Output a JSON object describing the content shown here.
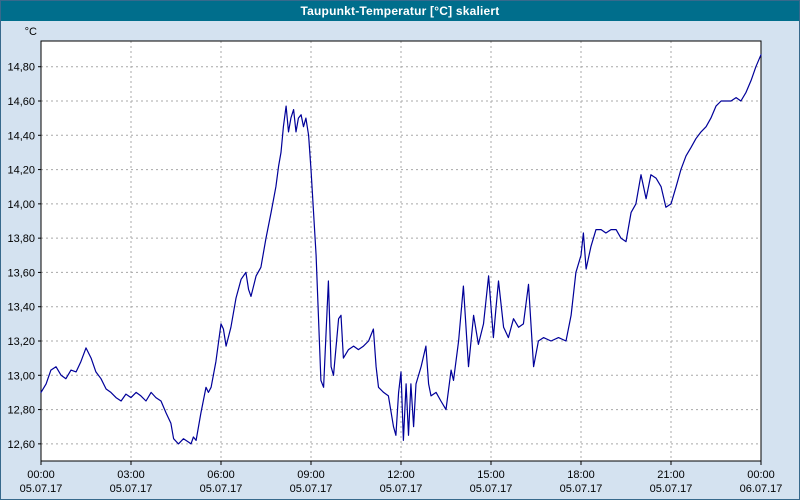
{
  "window": {
    "title": "Taupunkt-Temperatur [°C] skaliert"
  },
  "chart_data": {
    "type": "line",
    "title": "Taupunkt-Temperatur [°C] skaliert",
    "unit_label": "°C",
    "legend": "none",
    "grid": "dashed",
    "line_color": "#000099",
    "plot_background": "#ffffff",
    "window_background": "#d4e2f0",
    "titlebar_color": "#006e8c",
    "grid_color": "#a8a8a8",
    "axis_color": "#000000",
    "xlim": [
      0,
      24
    ],
    "ylim": [
      12.5,
      14.95
    ],
    "yticks": [
      12.6,
      12.8,
      13.0,
      13.2,
      13.4,
      13.6,
      13.8,
      14.0,
      14.2,
      14.4,
      14.6,
      14.8
    ],
    "ytick_labels": [
      "12,60",
      "12,80",
      "13,00",
      "13,20",
      "13,40",
      "13,60",
      "13,80",
      "14,00",
      "14,20",
      "14,40",
      "14,60",
      "14,80"
    ],
    "xticks": [
      {
        "h": 0,
        "time": "00:00",
        "date": "05.07.17"
      },
      {
        "h": 3,
        "time": "03:00",
        "date": "05.07.17"
      },
      {
        "h": 6,
        "time": "06:00",
        "date": "05.07.17"
      },
      {
        "h": 9,
        "time": "09:00",
        "date": "05.07.17"
      },
      {
        "h": 12,
        "time": "12:00",
        "date": "05.07.17"
      },
      {
        "h": 15,
        "time": "15:00",
        "date": "05.07.17"
      },
      {
        "h": 18,
        "time": "18:00",
        "date": "05.07.17"
      },
      {
        "h": 21,
        "time": "21:00",
        "date": "05.07.17"
      },
      {
        "h": 24,
        "time": "00:00",
        "date": "06.07.17"
      }
    ],
    "series": [
      {
        "name": "Taupunkt-Temperatur",
        "points": [
          [
            0.0,
            12.9
          ],
          [
            0.17,
            12.95
          ],
          [
            0.33,
            13.03
          ],
          [
            0.5,
            13.05
          ],
          [
            0.67,
            13.0
          ],
          [
            0.83,
            12.98
          ],
          [
            1.0,
            13.03
          ],
          [
            1.17,
            13.02
          ],
          [
            1.33,
            13.08
          ],
          [
            1.5,
            13.16
          ],
          [
            1.67,
            13.1
          ],
          [
            1.83,
            13.02
          ],
          [
            2.0,
            12.98
          ],
          [
            2.17,
            12.92
          ],
          [
            2.33,
            12.9
          ],
          [
            2.5,
            12.87
          ],
          [
            2.67,
            12.85
          ],
          [
            2.83,
            12.89
          ],
          [
            3.0,
            12.87
          ],
          [
            3.17,
            12.9
          ],
          [
            3.33,
            12.88
          ],
          [
            3.5,
            12.85
          ],
          [
            3.67,
            12.9
          ],
          [
            3.83,
            12.87
          ],
          [
            4.0,
            12.85
          ],
          [
            4.17,
            12.78
          ],
          [
            4.33,
            12.72
          ],
          [
            4.42,
            12.63
          ],
          [
            4.58,
            12.6
          ],
          [
            4.75,
            12.63
          ],
          [
            4.92,
            12.61
          ],
          [
            5.0,
            12.6
          ],
          [
            5.08,
            12.64
          ],
          [
            5.17,
            12.62
          ],
          [
            5.33,
            12.78
          ],
          [
            5.5,
            12.93
          ],
          [
            5.58,
            12.9
          ],
          [
            5.67,
            12.93
          ],
          [
            5.83,
            13.08
          ],
          [
            6.0,
            13.3
          ],
          [
            6.08,
            13.27
          ],
          [
            6.17,
            13.17
          ],
          [
            6.33,
            13.28
          ],
          [
            6.5,
            13.45
          ],
          [
            6.67,
            13.56
          ],
          [
            6.83,
            13.6
          ],
          [
            6.92,
            13.5
          ],
          [
            7.0,
            13.46
          ],
          [
            7.17,
            13.58
          ],
          [
            7.33,
            13.63
          ],
          [
            7.5,
            13.8
          ],
          [
            7.67,
            13.95
          ],
          [
            7.83,
            14.1
          ],
          [
            7.92,
            14.22
          ],
          [
            8.0,
            14.3
          ],
          [
            8.08,
            14.45
          ],
          [
            8.17,
            14.57
          ],
          [
            8.25,
            14.42
          ],
          [
            8.33,
            14.5
          ],
          [
            8.42,
            14.55
          ],
          [
            8.5,
            14.42
          ],
          [
            8.58,
            14.5
          ],
          [
            8.67,
            14.52
          ],
          [
            8.75,
            14.45
          ],
          [
            8.83,
            14.5
          ],
          [
            8.92,
            14.4
          ],
          [
            9.0,
            14.2
          ],
          [
            9.17,
            13.7
          ],
          [
            9.33,
            12.97
          ],
          [
            9.42,
            12.93
          ],
          [
            9.58,
            13.55
          ],
          [
            9.67,
            13.05
          ],
          [
            9.75,
            13.0
          ],
          [
            9.92,
            13.33
          ],
          [
            10.0,
            13.35
          ],
          [
            10.08,
            13.1
          ],
          [
            10.25,
            13.15
          ],
          [
            10.42,
            13.17
          ],
          [
            10.58,
            13.15
          ],
          [
            10.75,
            13.17
          ],
          [
            10.92,
            13.2
          ],
          [
            11.08,
            13.27
          ],
          [
            11.17,
            13.05
          ],
          [
            11.25,
            12.93
          ],
          [
            11.42,
            12.9
          ],
          [
            11.58,
            12.88
          ],
          [
            11.75,
            12.7
          ],
          [
            11.83,
            12.65
          ],
          [
            11.92,
            12.9
          ],
          [
            12.0,
            13.02
          ],
          [
            12.08,
            12.62
          ],
          [
            12.17,
            12.95
          ],
          [
            12.25,
            12.65
          ],
          [
            12.33,
            12.95
          ],
          [
            12.42,
            12.7
          ],
          [
            12.5,
            12.95
          ],
          [
            12.67,
            13.05
          ],
          [
            12.83,
            13.17
          ],
          [
            12.92,
            12.95
          ],
          [
            13.0,
            12.88
          ],
          [
            13.17,
            12.9
          ],
          [
            13.33,
            12.85
          ],
          [
            13.5,
            12.8
          ],
          [
            13.67,
            13.03
          ],
          [
            13.75,
            12.97
          ],
          [
            13.92,
            13.2
          ],
          [
            14.08,
            13.52
          ],
          [
            14.25,
            13.05
          ],
          [
            14.42,
            13.35
          ],
          [
            14.58,
            13.18
          ],
          [
            14.75,
            13.3
          ],
          [
            14.92,
            13.58
          ],
          [
            15.08,
            13.22
          ],
          [
            15.17,
            13.4
          ],
          [
            15.25,
            13.55
          ],
          [
            15.42,
            13.28
          ],
          [
            15.58,
            13.22
          ],
          [
            15.75,
            13.33
          ],
          [
            15.92,
            13.28
          ],
          [
            16.08,
            13.3
          ],
          [
            16.25,
            13.53
          ],
          [
            16.42,
            13.05
          ],
          [
            16.58,
            13.2
          ],
          [
            16.75,
            13.22
          ],
          [
            17.0,
            13.2
          ],
          [
            17.25,
            13.22
          ],
          [
            17.5,
            13.2
          ],
          [
            17.67,
            13.35
          ],
          [
            17.83,
            13.6
          ],
          [
            18.0,
            13.7
          ],
          [
            18.08,
            13.83
          ],
          [
            18.17,
            13.62
          ],
          [
            18.33,
            13.75
          ],
          [
            18.5,
            13.85
          ],
          [
            18.67,
            13.85
          ],
          [
            18.83,
            13.83
          ],
          [
            19.0,
            13.85
          ],
          [
            19.17,
            13.85
          ],
          [
            19.33,
            13.8
          ],
          [
            19.5,
            13.78
          ],
          [
            19.67,
            13.95
          ],
          [
            19.83,
            14.0
          ],
          [
            20.0,
            14.17
          ],
          [
            20.17,
            14.03
          ],
          [
            20.33,
            14.17
          ],
          [
            20.5,
            14.15
          ],
          [
            20.67,
            14.1
          ],
          [
            20.83,
            13.98
          ],
          [
            21.0,
            14.0
          ],
          [
            21.17,
            14.1
          ],
          [
            21.33,
            14.2
          ],
          [
            21.5,
            14.28
          ],
          [
            21.67,
            14.33
          ],
          [
            21.83,
            14.38
          ],
          [
            22.0,
            14.42
          ],
          [
            22.17,
            14.45
          ],
          [
            22.33,
            14.5
          ],
          [
            22.5,
            14.57
          ],
          [
            22.67,
            14.6
          ],
          [
            22.83,
            14.6
          ],
          [
            23.0,
            14.6
          ],
          [
            23.17,
            14.62
          ],
          [
            23.33,
            14.6
          ],
          [
            23.5,
            14.65
          ],
          [
            23.67,
            14.72
          ],
          [
            23.83,
            14.8
          ],
          [
            24.0,
            14.87
          ]
        ]
      }
    ]
  }
}
